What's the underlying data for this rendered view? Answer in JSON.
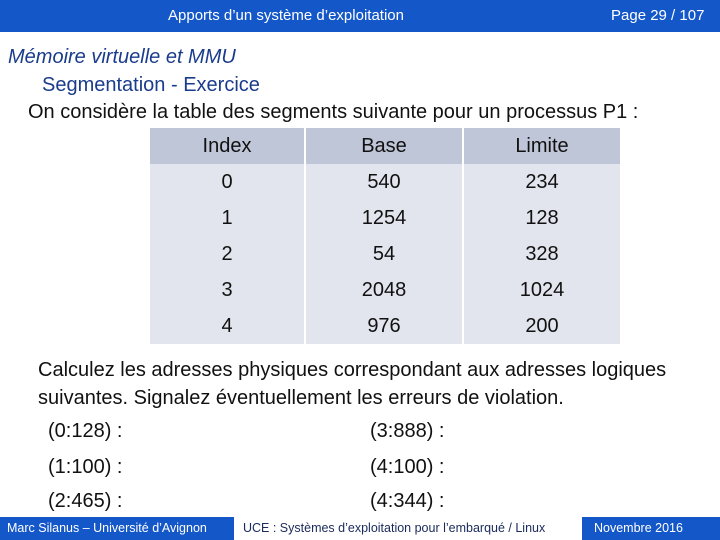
{
  "header": {
    "title": "Apports  d’un système d’exploitation",
    "page": "Page 29 / 107"
  },
  "slide": {
    "heading": "Mémoire virtuelle et MMU",
    "subheading": "Segmentation - Exercice",
    "intro": "On considère la table des segments suivante pour un processus P1 :"
  },
  "table": {
    "headers": [
      "Index",
      "Base",
      "Limite"
    ],
    "rows": [
      [
        "0",
        "540",
        "234"
      ],
      [
        "1",
        "1254",
        "128"
      ],
      [
        "2",
        "54",
        "328"
      ],
      [
        "3",
        "2048",
        "1024"
      ],
      [
        "4",
        "976",
        "200"
      ]
    ]
  },
  "question": "Calculez les adresses physiques correspondant aux adresses logiques suivantes. Signalez éventuellement les erreurs de violation.",
  "addresses": [
    "(0:128) :",
    "(3:888) :",
    "(1:100) :",
    "(4:100) :",
    "(2:465) :",
    "(4:344) :"
  ],
  "footer": {
    "author": "Marc Silanus – Université d’Avignon",
    "course": "UCE : Systèmes d’exploitation pour l’embarqué / Linux",
    "date": "Novembre 2016"
  },
  "colors": {
    "bar": "#1457c9",
    "header_cell": "#bfc6d8",
    "body_cell": "#e2e5ee",
    "heading": "#1a3c8c"
  }
}
